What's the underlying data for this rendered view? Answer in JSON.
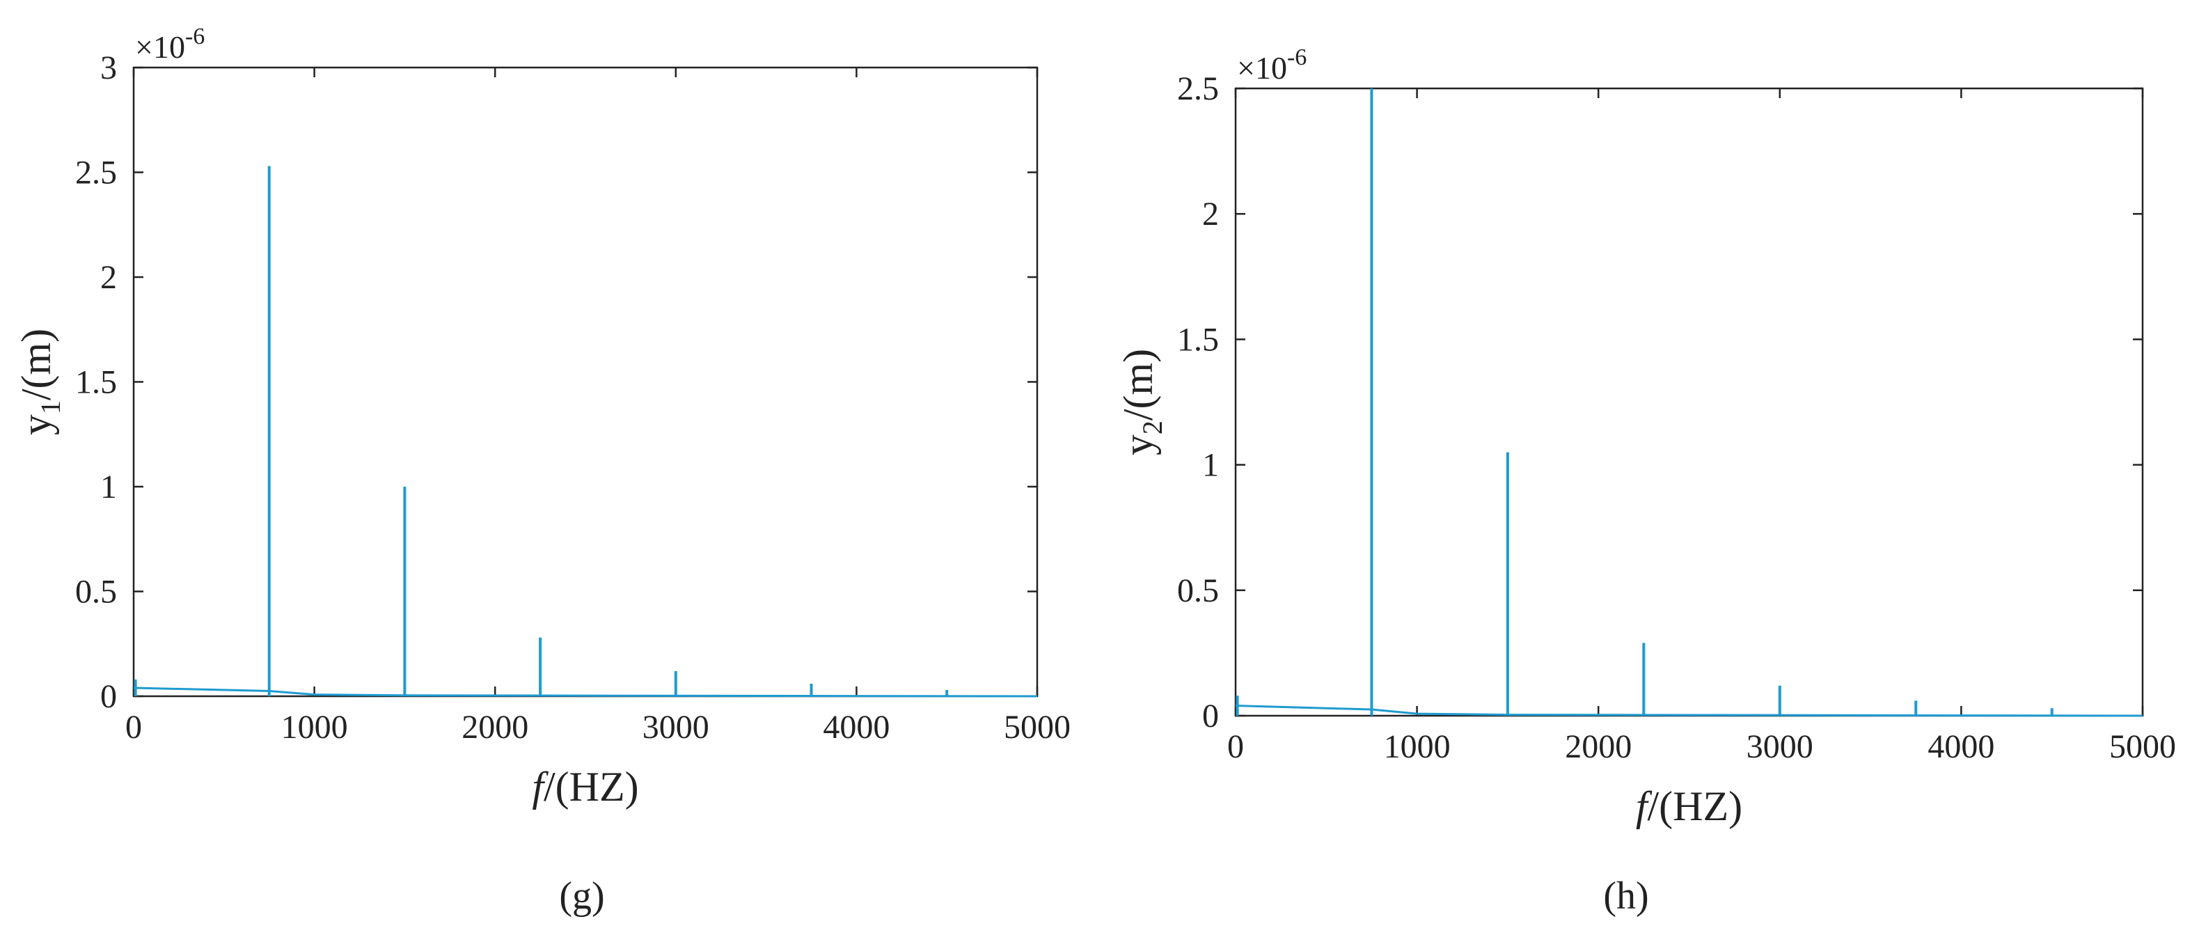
{
  "colors": {
    "series": "#1f9bd0",
    "axis": "#222222",
    "background": "#ffffff"
  },
  "chart_data": [
    {
      "type": "line",
      "panel_label": "(g)",
      "xlabel_italic": "f",
      "xlabel_rest": "/(HZ)",
      "ylabel_main": "y",
      "ylabel_sub": "1",
      "ylabel_rest": "/(m)",
      "y_exponent_base": "×10",
      "y_exponent_power": "-6",
      "xlim": [
        0,
        5000
      ],
      "ylim": [
        0,
        3
      ],
      "x_ticks": [
        "0",
        "1000",
        "2000",
        "3000",
        "4000",
        "5000"
      ],
      "y_ticks": [
        "0",
        "0.5",
        "1",
        "1.5",
        "2",
        "2.5",
        "3"
      ],
      "grid": false,
      "baseline": {
        "x": [
          0,
          750,
          1000,
          1500,
          5000
        ],
        "y": [
          0.04,
          0.025,
          0.008,
          0.004,
          0.0
        ]
      },
      "peaks": [
        {
          "x": 10,
          "y": 0.08
        },
        {
          "x": 750,
          "y": 2.53
        },
        {
          "x": 1500,
          "y": 1.0
        },
        {
          "x": 2250,
          "y": 0.28
        },
        {
          "x": 3000,
          "y": 0.12
        },
        {
          "x": 3750,
          "y": 0.06
        },
        {
          "x": 4500,
          "y": 0.03
        }
      ]
    },
    {
      "type": "line",
      "panel_label": "(h)",
      "xlabel_italic": "f",
      "xlabel_rest": "/(HZ)",
      "ylabel_main": "y",
      "ylabel_sub": "2",
      "ylabel_rest": "/(m)",
      "y_exponent_base": "×10",
      "y_exponent_power": "-6",
      "xlim": [
        0,
        5000
      ],
      "ylim": [
        0,
        2.5
      ],
      "x_ticks": [
        "0",
        "1000",
        "2000",
        "3000",
        "4000",
        "5000"
      ],
      "y_ticks": [
        "0",
        "0.5",
        "1",
        "1.5",
        "2",
        "2.5"
      ],
      "grid": false,
      "baseline": {
        "x": [
          0,
          750,
          1000,
          1500,
          5000
        ],
        "y": [
          0.04,
          0.025,
          0.008,
          0.004,
          0.0
        ]
      },
      "peaks": [
        {
          "x": 10,
          "y": 0.08
        },
        {
          "x": 750,
          "y": 2.5
        },
        {
          "x": 1500,
          "y": 1.05
        },
        {
          "x": 2250,
          "y": 0.29
        },
        {
          "x": 3000,
          "y": 0.12
        },
        {
          "x": 3750,
          "y": 0.06
        },
        {
          "x": 4500,
          "y": 0.03
        }
      ]
    }
  ]
}
